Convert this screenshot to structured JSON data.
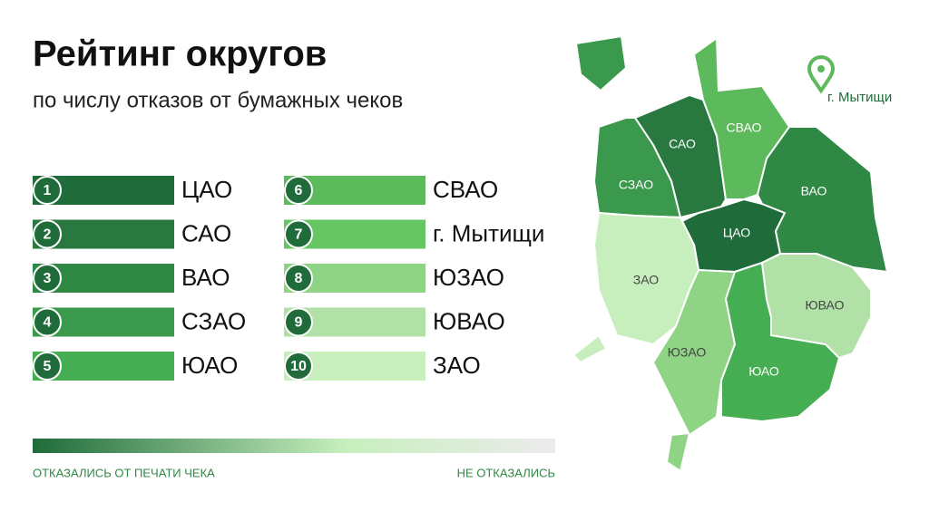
{
  "title": "Рейтинг округов",
  "subtitle": "по числу отказов от бумажных чеков",
  "ranking": [
    {
      "rank": 1,
      "name": "ЦАО",
      "color": "#1f6b3a"
    },
    {
      "rank": 2,
      "name": "САО",
      "color": "#28783f"
    },
    {
      "rank": 3,
      "name": "ВАО",
      "color": "#2f8844"
    },
    {
      "rank": 4,
      "name": "СЗАО",
      "color": "#3a994c"
    },
    {
      "rank": 5,
      "name": "ЮАО",
      "color": "#45ad52"
    },
    {
      "rank": 6,
      "name": "СВАО",
      "color": "#5cb95c"
    },
    {
      "rank": 7,
      "name": "г. Мытищи",
      "color": "#66c664"
    },
    {
      "rank": 8,
      "name": "ЮЗАО",
      "color": "#8fd385"
    },
    {
      "rank": 9,
      "name": "ЮВАО",
      "color": "#b1e1a6"
    },
    {
      "rank": 10,
      "name": "ЗАО",
      "color": "#c7efbe"
    }
  ],
  "map": {
    "regions": [
      {
        "name": "ЦАО",
        "color": "#1f6b3a"
      },
      {
        "name": "САО",
        "color": "#28783f"
      },
      {
        "name": "СВАО",
        "color": "#5cb95c"
      },
      {
        "name": "ВАО",
        "color": "#2f8844"
      },
      {
        "name": "СЗАО",
        "color": "#3a994c"
      },
      {
        "name": "ЗАО",
        "color": "#c7efbe"
      },
      {
        "name": "ЮЗАО",
        "color": "#8fd385"
      },
      {
        "name": "ЮАО",
        "color": "#45ad52"
      },
      {
        "name": "ЮВАО",
        "color": "#b1e1a6"
      }
    ],
    "marker": "г. Мытищи"
  },
  "legend": {
    "left": "ОТКАЗАЛИСЬ ОТ ПЕЧАТИ ЧЕКА",
    "right": "НЕ ОТКАЗАЛИСЬ"
  }
}
